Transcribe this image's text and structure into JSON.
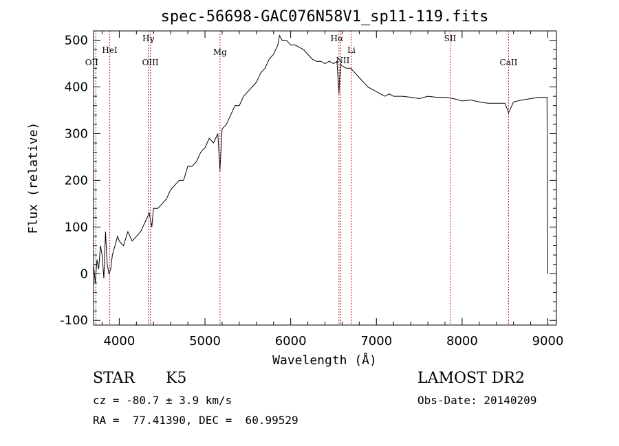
{
  "chart_data": {
    "type": "line",
    "title": "spec-56698-GAC076N58V1_sp11-119.fits",
    "xlabel": "Wavelength (Å)",
    "ylabel": "Flux (relative)",
    "xlim": [
      3700,
      9100
    ],
    "ylim": [
      -110,
      520
    ],
    "xticks": [
      4000,
      5000,
      6000,
      7000,
      8000,
      9000
    ],
    "yticks": [
      -100,
      0,
      100,
      200,
      300,
      400,
      500
    ],
    "series": [
      {
        "x": [
          3700,
          3720,
          3740,
          3760,
          3780,
          3800,
          3820,
          3840,
          3860,
          3880,
          3900,
          3920,
          3950,
          3980,
          4000,
          4050,
          4100,
          4150,
          4200,
          4250,
          4300,
          4350,
          4380,
          4400,
          4450,
          4500,
          4550,
          4600,
          4650,
          4700,
          4750,
          4800,
          4850,
          4900,
          4950,
          5000,
          5050,
          5100,
          5150,
          5175,
          5200,
          5250,
          5300,
          5350,
          5400,
          5450,
          5500,
          5550,
          5600,
          5650,
          5700,
          5750,
          5800,
          5850,
          5870,
          5900,
          5950,
          6000,
          6050,
          6100,
          6150,
          6200,
          6250,
          6300,
          6350,
          6400,
          6450,
          6500,
          6540,
          6563,
          6580,
          6600,
          6650,
          6700,
          6750,
          6800,
          6850,
          6900,
          6950,
          7000,
          7050,
          7100,
          7150,
          7200,
          7300,
          7400,
          7500,
          7600,
          7700,
          7800,
          7900,
          8000,
          8100,
          8200,
          8300,
          8400,
          8500,
          8542,
          8600,
          8700,
          8800,
          8900,
          8990,
          9000
        ],
        "y": [
          20,
          -20,
          30,
          10,
          60,
          40,
          -10,
          90,
          20,
          0,
          10,
          40,
          60,
          80,
          70,
          60,
          90,
          70,
          80,
          90,
          110,
          130,
          100,
          140,
          140,
          150,
          160,
          180,
          190,
          200,
          200,
          230,
          230,
          240,
          260,
          270,
          290,
          280,
          300,
          220,
          310,
          320,
          340,
          360,
          360,
          380,
          390,
          400,
          410,
          430,
          440,
          460,
          470,
          490,
          510,
          500,
          500,
          490,
          490,
          485,
          480,
          470,
          460,
          455,
          455,
          450,
          455,
          450,
          455,
          385,
          450,
          445,
          440,
          440,
          430,
          420,
          410,
          400,
          395,
          390,
          385,
          380,
          385,
          380,
          380,
          378,
          375,
          380,
          378,
          378,
          375,
          370,
          372,
          368,
          365,
          365,
          365,
          345,
          368,
          372,
          375,
          378,
          378,
          0
        ]
      }
    ],
    "annotations": [
      {
        "label": "OII",
        "x": 3727
      },
      {
        "label": "HeI",
        "x": 3889
      },
      {
        "label": "Hγ",
        "x": 4340
      },
      {
        "label": "OIII",
        "x": 4363
      },
      {
        "label": "Mg",
        "x": 5175
      },
      {
        "label": "Hα",
        "x": 6563
      },
      {
        "label": "NII",
        "x": 6584
      },
      {
        "label": "Li",
        "x": 6708
      },
      {
        "label": "SII",
        "x": 7860
      },
      {
        "label": "CaII",
        "x": 8542
      }
    ]
  },
  "info": {
    "class": "STAR",
    "subclass": "K5",
    "cz": "cz = -80.7 ± 3.9 km/s",
    "radec": "RA =  77.41390, DEC =  60.99529",
    "survey": "LAMOST DR2",
    "obsdate": "Obs-Date: 20140209"
  }
}
